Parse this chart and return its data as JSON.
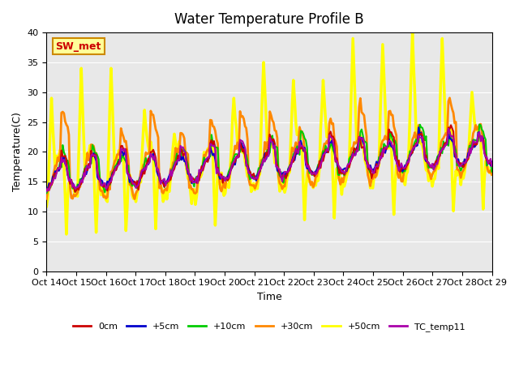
{
  "title": "Water Temperature Profile B",
  "xlabel": "Time",
  "ylabel": "Temperature(C)",
  "ylim": [
    0,
    40
  ],
  "yticks": [
    0,
    5,
    10,
    15,
    20,
    25,
    30,
    35,
    40
  ],
  "background_color": "#e8e8e8",
  "series_colors": {
    "0cm": "#cc0000",
    "+5cm": "#0000cc",
    "+10cm": "#00cc00",
    "+30cm": "#ff8800",
    "+50cm": "#ffff00",
    "TC_temp11": "#aa00aa"
  },
  "series_linewidths": {
    "0cm": 1.5,
    "+5cm": 1.5,
    "+10cm": 1.5,
    "+30cm": 2.0,
    "+50cm": 2.5,
    "TC_temp11": 1.5
  },
  "annotation_text": "SW_met",
  "annotation_color": "#cc0000",
  "annotation_box_color": "#ffff99",
  "annotation_border_color": "#cc8800",
  "tick_labels": [
    "Oct 14",
    "Oct 15",
    "Oct 16",
    "Oct 17",
    "Oct 18",
    "Oct 19",
    "Oct 20",
    "Oct 21",
    "Oct 22",
    "Oct 23",
    "Oct 24",
    "Oct 25",
    "Oct 26",
    "Oct 27",
    "Oct 28",
    "Oct 29"
  ],
  "num_days": 15,
  "points_per_day": 24
}
